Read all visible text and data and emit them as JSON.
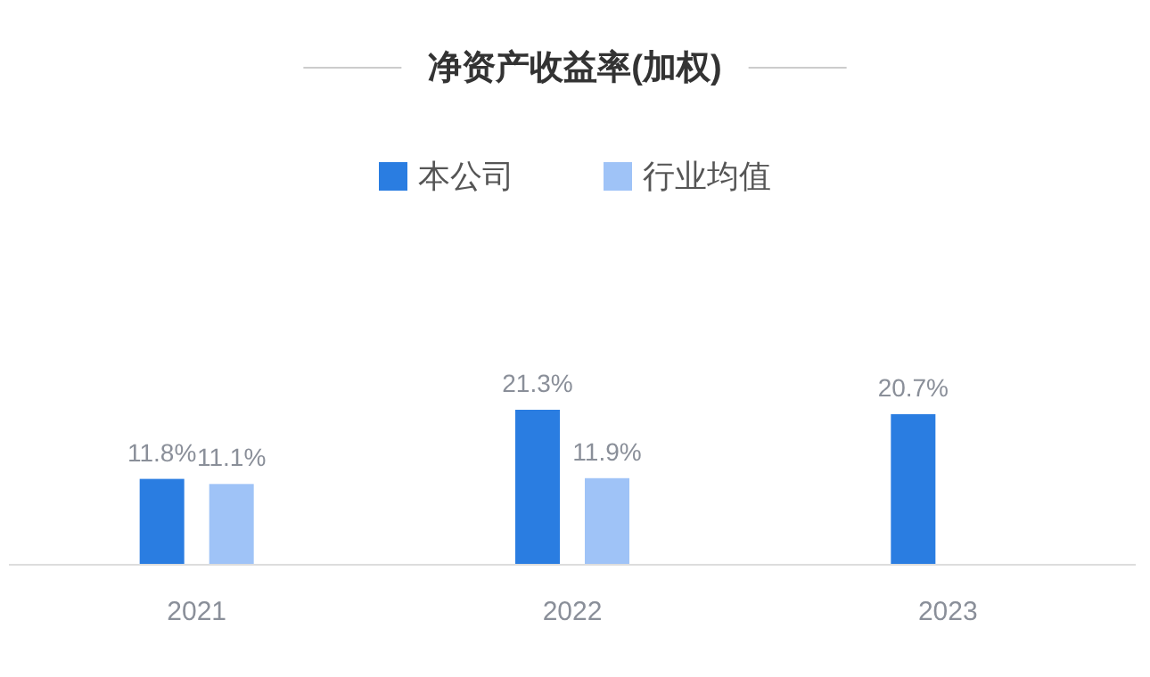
{
  "chart_data": {
    "type": "bar",
    "title": "净资产收益率(加权)",
    "categories": [
      "2021",
      "2022",
      "2023"
    ],
    "series": [
      {
        "name": "本公司",
        "color": "#2a7de1",
        "values": [
          11.8,
          21.3,
          20.7
        ],
        "value_labels": [
          "11.8%",
          "21.3%",
          "20.7%"
        ]
      },
      {
        "name": "行业均值",
        "color": "#9fc3f7",
        "values": [
          11.1,
          11.9,
          null
        ],
        "value_labels": [
          "11.1%",
          "11.9%",
          null
        ]
      }
    ],
    "legend": "top",
    "grid": false
  }
}
